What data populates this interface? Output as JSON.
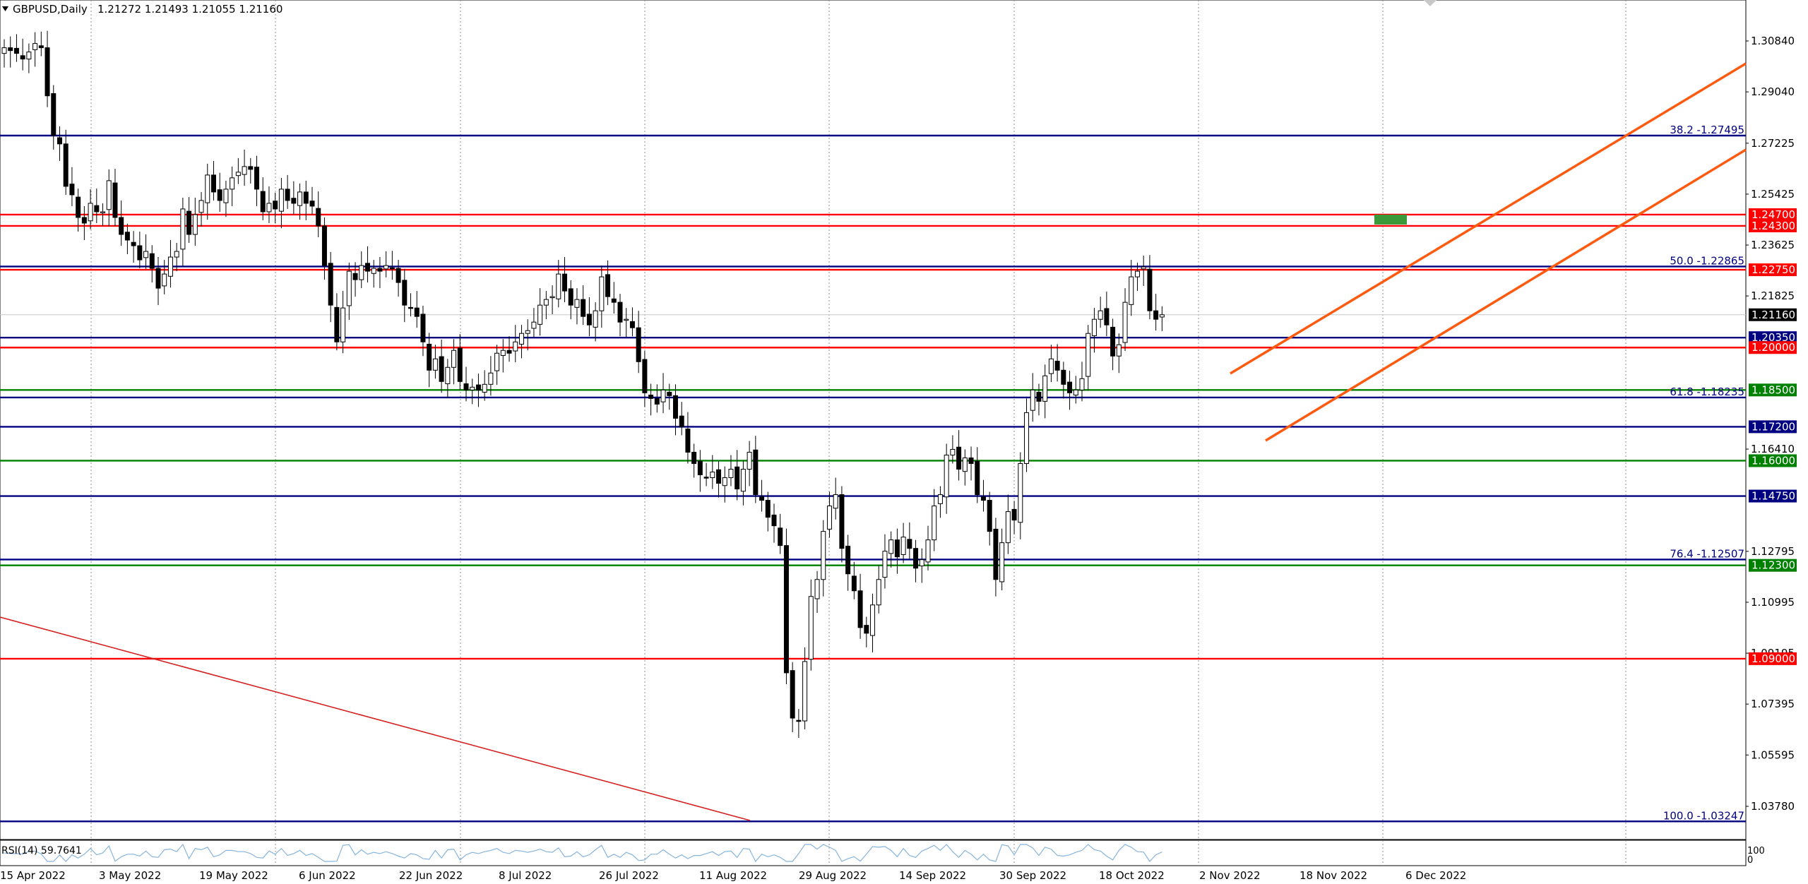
{
  "header": {
    "menu_icon": "triangle-down-icon",
    "symbol": "GBPUSD,Daily",
    "ohlc": "1.21272 1.21493 1.21055 1.21160"
  },
  "rsi": {
    "label": "RSI(14) 59.7641",
    "scale_top": "100",
    "scale_bottom": "0"
  },
  "colors": {
    "support_resistance_red": "#ff0000",
    "blue_level": "#000080",
    "green_level": "#008000",
    "channel": "#ff5a0f",
    "grid": "#808080",
    "target_box": "#3a9a3a",
    "rsi_line": "#87b4dc"
  },
  "chart_data": {
    "type": "candlestick",
    "symbol": "GBPUSD",
    "timeframe": "Daily",
    "ylim": [
      1.027,
      1.316
    ],
    "grid": "vertical-dotted",
    "y_ticks": [
      "1.30840",
      "1.29040",
      "1.27225",
      "1.25425",
      "1.23625",
      "1.21825",
      "1.16410",
      "1.12795",
      "1.10995",
      "1.09195",
      "1.07395",
      "1.05595",
      "1.03780"
    ],
    "x_labels": [
      "15 Apr 2022",
      "3 May 2022",
      "19 May 2022",
      "6 Jun 2022",
      "22 Jun 2022",
      "8 Jul 2022",
      "26 Jul 2022",
      "11 Aug 2022",
      "29 Aug 2022",
      "14 Sep 2022",
      "30 Sep 2022",
      "18 Oct 2022",
      "2 Nov 2022",
      "18 Nov 2022",
      "6 Dec 2022"
    ],
    "current_price": "1.21160",
    "price_levels": [
      {
        "label": "1.24700",
        "value": 1.247,
        "color": "red"
      },
      {
        "label": "1.24300",
        "value": 1.243,
        "color": "red"
      },
      {
        "label": "1.22750",
        "value": 1.2275,
        "color": "red"
      },
      {
        "label": "1.20350",
        "value": 1.2035,
        "color": "blue"
      },
      {
        "label": "1.20000",
        "value": 1.2,
        "color": "red"
      },
      {
        "label": "1.18500",
        "value": 1.185,
        "color": "green"
      },
      {
        "label": "1.17200",
        "value": 1.172,
        "color": "blue"
      },
      {
        "label": "1.16000",
        "value": 1.16,
        "color": "green"
      },
      {
        "label": "1.14750",
        "value": 1.1475,
        "color": "blue"
      },
      {
        "label": "1.12300",
        "value": 1.123,
        "color": "green"
      },
      {
        "label": "1.09000",
        "value": 1.09,
        "color": "red"
      }
    ],
    "fib_levels": [
      {
        "label": "38.2 -1.27495",
        "value": 1.27495
      },
      {
        "label": "50.0 -1.22865",
        "value": 1.22865
      },
      {
        "label": "61.8 -1.18235",
        "value": 1.18235
      },
      {
        "label": "76.4 -1.12507",
        "value": 1.12507
      },
      {
        "label": "100.0 -1.03247",
        "value": 1.03247
      }
    ],
    "closes": [
      1.306,
      1.305,
      1.304,
      1.302,
      1.3045,
      1.3075,
      1.306,
      1.289,
      1.275,
      1.272,
      1.257,
      1.254,
      1.246,
      1.244,
      1.251,
      1.248,
      1.248,
      1.259,
      1.246,
      1.24,
      1.238,
      1.236,
      1.231,
      1.234,
      1.228,
      1.221,
      1.226,
      1.232,
      1.234,
      1.249,
      1.24,
      1.247,
      1.252,
      1.261,
      1.255,
      1.252,
      1.256,
      1.26,
      1.262,
      1.264,
      1.263,
      1.256,
      1.248,
      1.251,
      1.249,
      1.256,
      1.252,
      1.251,
      1.255,
      1.251,
      1.25,
      1.243,
      1.229,
      1.215,
      1.202,
      1.214,
      1.227,
      1.224,
      1.229,
      1.227,
      1.228,
      1.227,
      1.229,
      1.228,
      1.223,
      1.215,
      1.214,
      1.211,
      1.202,
      1.192,
      1.196,
      1.188,
      1.193,
      1.199,
      1.188,
      1.185,
      1.186,
      1.185,
      1.187,
      1.191,
      1.198,
      1.199,
      1.198,
      1.202,
      1.205,
      1.206,
      1.209,
      1.215,
      1.217,
      1.218,
      1.226,
      1.22,
      1.215,
      1.217,
      1.211,
      1.208,
      1.213,
      1.225,
      1.218,
      1.216,
      1.209,
      1.21,
      1.207,
      1.195,
      1.184,
      1.182,
      1.18,
      1.185,
      1.183,
      1.175,
      1.172,
      1.163,
      1.159,
      1.155,
      1.154,
      1.156,
      1.152,
      1.154,
      1.157,
      1.15,
      1.157,
      1.163,
      1.148,
      1.146,
      1.14,
      1.137,
      1.13,
      1.085,
      1.069,
      1.068,
      1.089,
      1.112,
      1.118,
      1.135,
      1.144,
      1.148,
      1.129,
      1.12,
      1.114,
      1.101,
      1.099,
      1.109,
      1.118,
      1.128,
      1.132,
      1.126,
      1.133,
      1.129,
      1.122,
      1.125,
      1.132,
      1.144,
      1.148,
      1.162,
      1.164,
      1.157,
      1.161,
      1.159,
      1.148,
      1.146,
      1.135,
      1.118,
      1.131,
      1.142,
      1.139,
      1.159,
      1.177,
      1.185,
      1.181,
      1.19,
      1.196,
      1.192,
      1.187,
      1.184,
      1.185,
      1.189,
      1.205,
      1.21,
      1.213,
      1.208,
      1.197,
      1.201,
      1.216,
      1.225,
      1.227,
      1.2285,
      1.213,
      1.21,
      1.2116
    ]
  }
}
